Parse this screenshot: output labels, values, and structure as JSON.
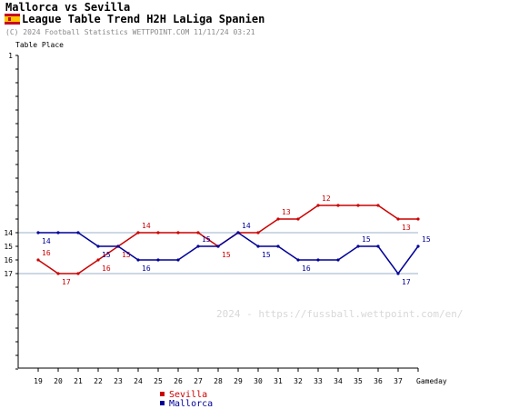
{
  "header": {
    "title": "Mallorca vs Sevilla",
    "subtitle": "League Table Trend H2H LaLiga Spanien",
    "copyright": "(C) 2024 Football Statistics WETTPOINT.COM 11/11/24 03:21",
    "flag_icon": "spain-flag-icon"
  },
  "watermark": "2024 - https://fussball.wettpoint.com/en/",
  "chart_data": {
    "type": "line",
    "ylabel": "Table Place",
    "xlabel": "Gameday",
    "x": [
      19,
      20,
      21,
      22,
      23,
      24,
      25,
      26,
      27,
      28,
      29,
      30,
      31,
      32,
      33,
      34,
      35,
      36,
      37,
      38
    ],
    "xtick_labels": [
      "19",
      "20",
      "21",
      "22",
      "23",
      "24",
      "25",
      "26",
      "27",
      "28",
      "29",
      "30",
      "31",
      "32",
      "33",
      "34",
      "35",
      "36",
      "37"
    ],
    "ylim": [
      24,
      1
    ],
    "ytick_labels": [
      "1",
      "14",
      "15",
      "16",
      "17"
    ],
    "reference_lines": [
      14,
      17
    ],
    "series": [
      {
        "name": "Sevilla",
        "color": "#cc0000",
        "values": [
          16,
          17,
          17,
          16,
          15,
          14,
          14,
          14,
          14,
          15,
          14,
          14,
          13,
          13,
          12,
          12,
          12,
          12,
          13,
          13
        ],
        "labels": [
          {
            "x": 19,
            "text": "16"
          },
          {
            "x": 20,
            "text": "17"
          },
          {
            "x": 22,
            "text": "16"
          },
          {
            "x": 23,
            "text": "15"
          },
          {
            "x": 24,
            "text": "14"
          },
          {
            "x": 28,
            "text": "15"
          },
          {
            "x": 31,
            "text": "13"
          },
          {
            "x": 33,
            "text": "12"
          },
          {
            "x": 37,
            "text": "13"
          }
        ]
      },
      {
        "name": "Mallorca",
        "color": "#000099",
        "values": [
          14,
          14,
          14,
          15,
          15,
          16,
          16,
          16,
          15,
          15,
          14,
          15,
          15,
          16,
          16,
          16,
          15,
          15,
          17,
          15
        ],
        "labels": [
          {
            "x": 19,
            "text": "14"
          },
          {
            "x": 22,
            "text": "15"
          },
          {
            "x": 24,
            "text": "16"
          },
          {
            "x": 27,
            "text": "15"
          },
          {
            "x": 29,
            "text": "14"
          },
          {
            "x": 30,
            "text": "15"
          },
          {
            "x": 32,
            "text": "16"
          },
          {
            "x": 35,
            "text": "15"
          },
          {
            "x": 37,
            "text": "17"
          },
          {
            "x": 38,
            "text": "15"
          }
        ]
      }
    ],
    "legend": [
      "Sevilla",
      "Mallorca"
    ],
    "legend_placement": "bottom"
  }
}
